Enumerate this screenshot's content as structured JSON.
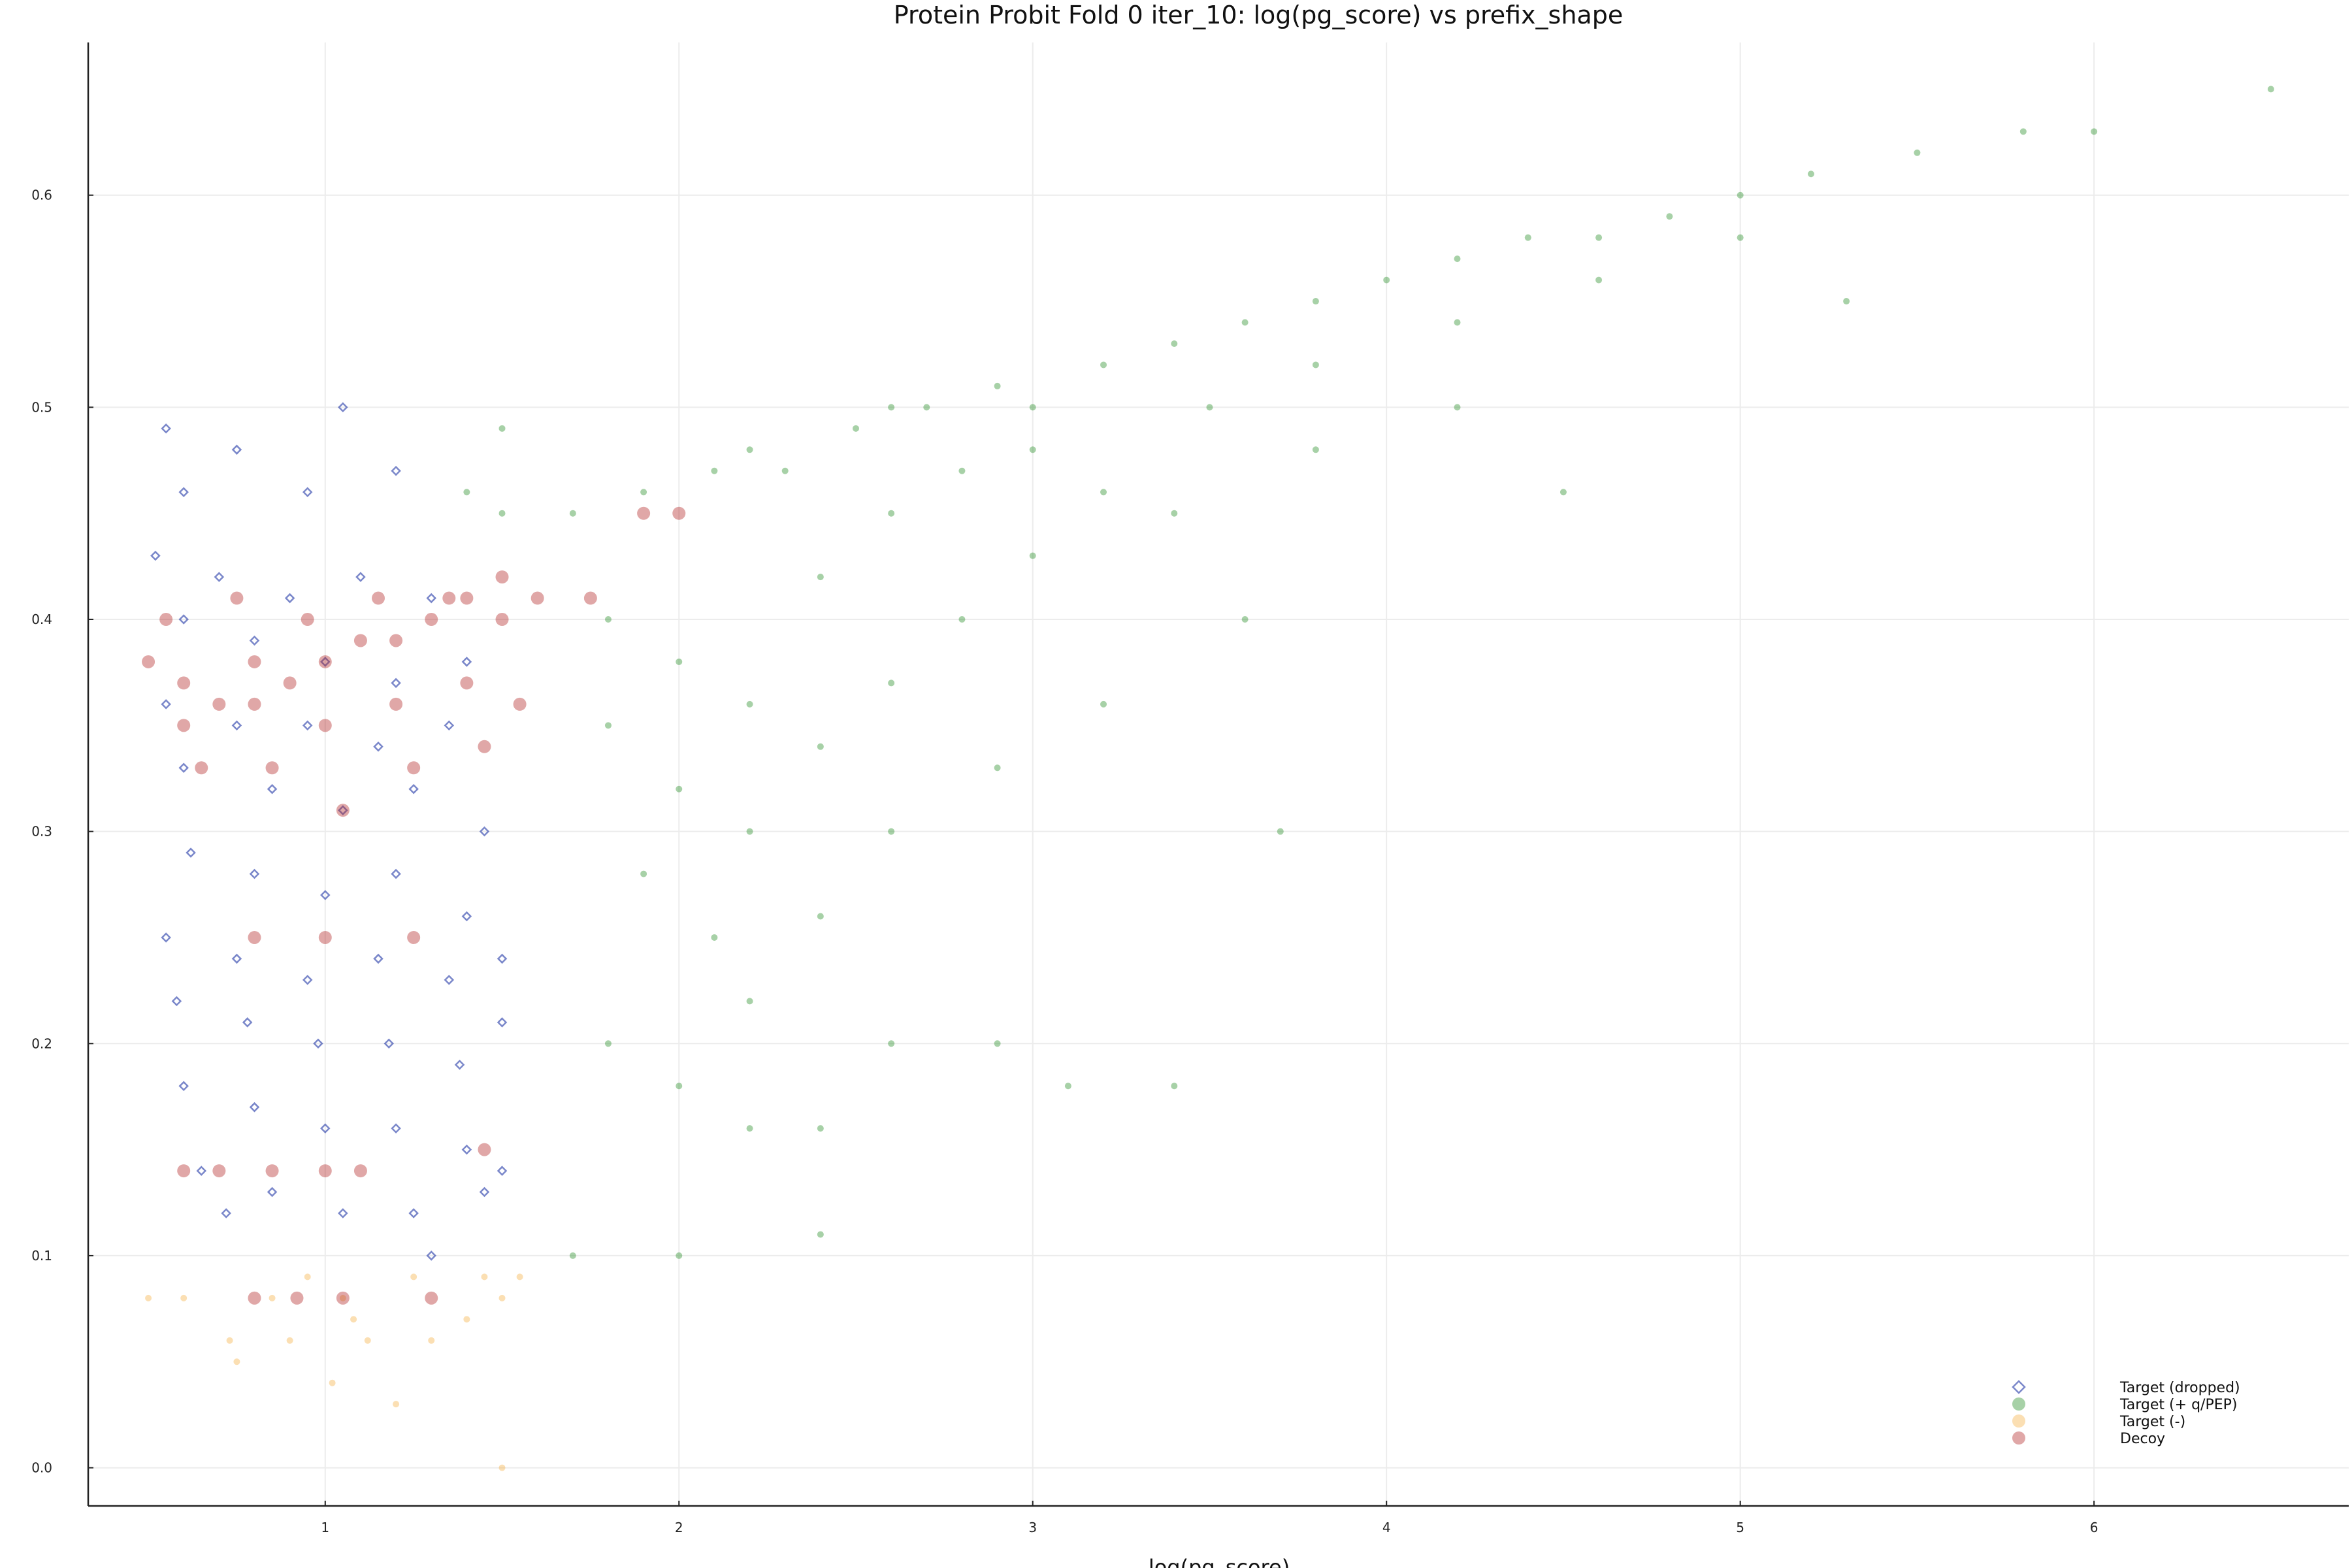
{
  "chart_data": {
    "type": "scatter",
    "title": "Protein Probit Fold 0 iter_10: log(pg_score) vs prefix_shape",
    "xlabel": "log(pg_score)",
    "ylabel": "",
    "xlim": [
      0.33,
      6.72
    ],
    "ylim": [
      -0.018,
      0.672
    ],
    "xticks": [
      1,
      2,
      3,
      4,
      5,
      6
    ],
    "yticks": [
      "0.0",
      "0.1",
      "0.2",
      "0.3",
      "0.4",
      "0.5",
      "0.6"
    ],
    "grid": true,
    "legend_position": "bottom-right",
    "series": [
      {
        "name": "Target (dropped)",
        "marker": "diamond",
        "color": "#2137a6",
        "points": [
          [
            0.55,
            0.49
          ],
          [
            0.6,
            0.46
          ],
          [
            0.75,
            0.48
          ],
          [
            0.95,
            0.46
          ],
          [
            1.05,
            0.5
          ],
          [
            1.2,
            0.47
          ],
          [
            0.52,
            0.43
          ],
          [
            0.7,
            0.42
          ],
          [
            0.9,
            0.41
          ],
          [
            1.1,
            0.42
          ],
          [
            1.3,
            0.41
          ],
          [
            0.6,
            0.4
          ],
          [
            0.8,
            0.39
          ],
          [
            1.0,
            0.38
          ],
          [
            1.2,
            0.37
          ],
          [
            1.4,
            0.38
          ],
          [
            0.55,
            0.36
          ],
          [
            0.75,
            0.35
          ],
          [
            0.95,
            0.35
          ],
          [
            1.15,
            0.34
          ],
          [
            1.35,
            0.35
          ],
          [
            0.6,
            0.33
          ],
          [
            0.85,
            0.32
          ],
          [
            1.05,
            0.31
          ],
          [
            1.25,
            0.32
          ],
          [
            1.45,
            0.3
          ],
          [
            0.62,
            0.29
          ],
          [
            0.8,
            0.28
          ],
          [
            1.0,
            0.27
          ],
          [
            1.2,
            0.28
          ],
          [
            1.4,
            0.26
          ],
          [
            0.55,
            0.25
          ],
          [
            0.75,
            0.24
          ],
          [
            0.95,
            0.23
          ],
          [
            1.15,
            0.24
          ],
          [
            1.35,
            0.23
          ],
          [
            1.5,
            0.24
          ],
          [
            0.58,
            0.22
          ],
          [
            0.78,
            0.21
          ],
          [
            0.98,
            0.2
          ],
          [
            1.18,
            0.2
          ],
          [
            1.38,
            0.19
          ],
          [
            1.5,
            0.21
          ],
          [
            0.6,
            0.18
          ],
          [
            0.8,
            0.17
          ],
          [
            1.0,
            0.16
          ],
          [
            1.2,
            0.16
          ],
          [
            1.4,
            0.15
          ],
          [
            1.5,
            0.14
          ],
          [
            0.65,
            0.14
          ],
          [
            0.85,
            0.13
          ],
          [
            1.05,
            0.12
          ],
          [
            1.25,
            0.12
          ],
          [
            1.45,
            0.13
          ],
          [
            0.72,
            0.12
          ],
          [
            1.3,
            0.1
          ]
        ]
      },
      {
        "name": "Target (+ q/PEP)",
        "marker": "circle",
        "color": "#228b22",
        "points": [
          [
            1.4,
            0.46
          ],
          [
            1.5,
            0.45
          ],
          [
            1.5,
            0.49
          ],
          [
            1.7,
            0.45
          ],
          [
            1.9,
            0.46
          ],
          [
            2.1,
            0.47
          ],
          [
            2.2,
            0.48
          ],
          [
            2.3,
            0.47
          ],
          [
            2.5,
            0.49
          ],
          [
            2.6,
            0.5
          ],
          [
            2.7,
            0.5
          ],
          [
            2.9,
            0.51
          ],
          [
            3.0,
            0.5
          ],
          [
            3.2,
            0.52
          ],
          [
            3.4,
            0.53
          ],
          [
            3.6,
            0.54
          ],
          [
            3.8,
            0.55
          ],
          [
            4.0,
            0.56
          ],
          [
            4.2,
            0.57
          ],
          [
            4.4,
            0.58
          ],
          [
            4.6,
            0.58
          ],
          [
            4.8,
            0.59
          ],
          [
            5.0,
            0.6
          ],
          [
            5.2,
            0.61
          ],
          [
            5.5,
            0.62
          ],
          [
            5.8,
            0.63
          ],
          [
            6.0,
            0.63
          ],
          [
            6.5,
            0.65
          ],
          [
            1.8,
            0.4
          ],
          [
            2.0,
            0.38
          ],
          [
            2.2,
            0.36
          ],
          [
            2.4,
            0.42
          ],
          [
            2.6,
            0.45
          ],
          [
            2.8,
            0.47
          ],
          [
            3.0,
            0.48
          ],
          [
            3.2,
            0.46
          ],
          [
            3.5,
            0.5
          ],
          [
            3.8,
            0.52
          ],
          [
            4.2,
            0.54
          ],
          [
            4.6,
            0.56
          ],
          [
            5.0,
            0.58
          ],
          [
            1.8,
            0.35
          ],
          [
            2.0,
            0.32
          ],
          [
            2.2,
            0.3
          ],
          [
            2.4,
            0.34
          ],
          [
            2.6,
            0.37
          ],
          [
            2.8,
            0.4
          ],
          [
            3.0,
            0.43
          ],
          [
            3.4,
            0.45
          ],
          [
            3.8,
            0.48
          ],
          [
            4.2,
            0.5
          ],
          [
            1.9,
            0.28
          ],
          [
            2.1,
            0.25
          ],
          [
            2.2,
            0.22
          ],
          [
            2.4,
            0.26
          ],
          [
            2.6,
            0.3
          ],
          [
            2.9,
            0.33
          ],
          [
            3.2,
            0.36
          ],
          [
            3.6,
            0.4
          ],
          [
            3.7,
            0.3
          ],
          [
            1.8,
            0.2
          ],
          [
            2.0,
            0.18
          ],
          [
            2.2,
            0.16
          ],
          [
            2.4,
            0.16
          ],
          [
            2.6,
            0.2
          ],
          [
            2.9,
            0.2
          ],
          [
            3.1,
            0.18
          ],
          [
            3.4,
            0.18
          ],
          [
            2.0,
            0.1
          ],
          [
            2.4,
            0.11
          ],
          [
            1.7,
            0.1
          ],
          [
            5.3,
            0.55
          ],
          [
            4.5,
            0.46
          ]
        ]
      },
      {
        "name": "Target (-)",
        "marker": "circle",
        "color": "#f5b041",
        "points": [
          [
            0.5,
            0.08
          ],
          [
            0.6,
            0.08
          ],
          [
            0.73,
            0.06
          ],
          [
            0.75,
            0.05
          ],
          [
            0.85,
            0.08
          ],
          [
            0.9,
            0.06
          ],
          [
            0.95,
            0.09
          ],
          [
            1.05,
            0.08
          ],
          [
            1.08,
            0.07
          ],
          [
            1.12,
            0.06
          ],
          [
            1.2,
            0.03
          ],
          [
            1.25,
            0.09
          ],
          [
            1.3,
            0.06
          ],
          [
            1.4,
            0.07
          ],
          [
            1.45,
            0.09
          ],
          [
            1.5,
            0.08
          ],
          [
            1.55,
            0.09
          ],
          [
            1.5,
            0.0
          ],
          [
            1.02,
            0.04
          ]
        ]
      },
      {
        "name": "Decoy",
        "marker": "circle",
        "color": "#b22222",
        "points": [
          [
            0.5,
            0.38
          ],
          [
            0.6,
            0.37
          ],
          [
            0.7,
            0.36
          ],
          [
            0.8,
            0.38
          ],
          [
            0.9,
            0.37
          ],
          [
            1.0,
            0.38
          ],
          [
            1.1,
            0.39
          ],
          [
            1.2,
            0.39
          ],
          [
            1.3,
            0.4
          ],
          [
            1.4,
            0.41
          ],
          [
            1.5,
            0.42
          ],
          [
            0.55,
            0.4
          ],
          [
            0.75,
            0.41
          ],
          [
            0.95,
            0.4
          ],
          [
            1.15,
            0.41
          ],
          [
            1.35,
            0.41
          ],
          [
            0.6,
            0.35
          ],
          [
            0.8,
            0.36
          ],
          [
            1.0,
            0.35
          ],
          [
            1.2,
            0.36
          ],
          [
            1.4,
            0.37
          ],
          [
            1.5,
            0.4
          ],
          [
            0.65,
            0.33
          ],
          [
            0.85,
            0.33
          ],
          [
            1.05,
            0.31
          ],
          [
            1.25,
            0.33
          ],
          [
            1.45,
            0.34
          ],
          [
            0.8,
            0.25
          ],
          [
            1.0,
            0.25
          ],
          [
            1.25,
            0.25
          ],
          [
            1.45,
            0.15
          ],
          [
            0.6,
            0.14
          ],
          [
            0.7,
            0.14
          ],
          [
            0.85,
            0.14
          ],
          [
            1.0,
            0.14
          ],
          [
            1.1,
            0.14
          ],
          [
            0.8,
            0.08
          ],
          [
            0.92,
            0.08
          ],
          [
            1.05,
            0.08
          ],
          [
            1.3,
            0.08
          ],
          [
            1.6,
            0.41
          ],
          [
            1.75,
            0.41
          ],
          [
            1.9,
            0.45
          ],
          [
            2.0,
            0.45
          ],
          [
            1.55,
            0.36
          ]
        ]
      }
    ]
  }
}
